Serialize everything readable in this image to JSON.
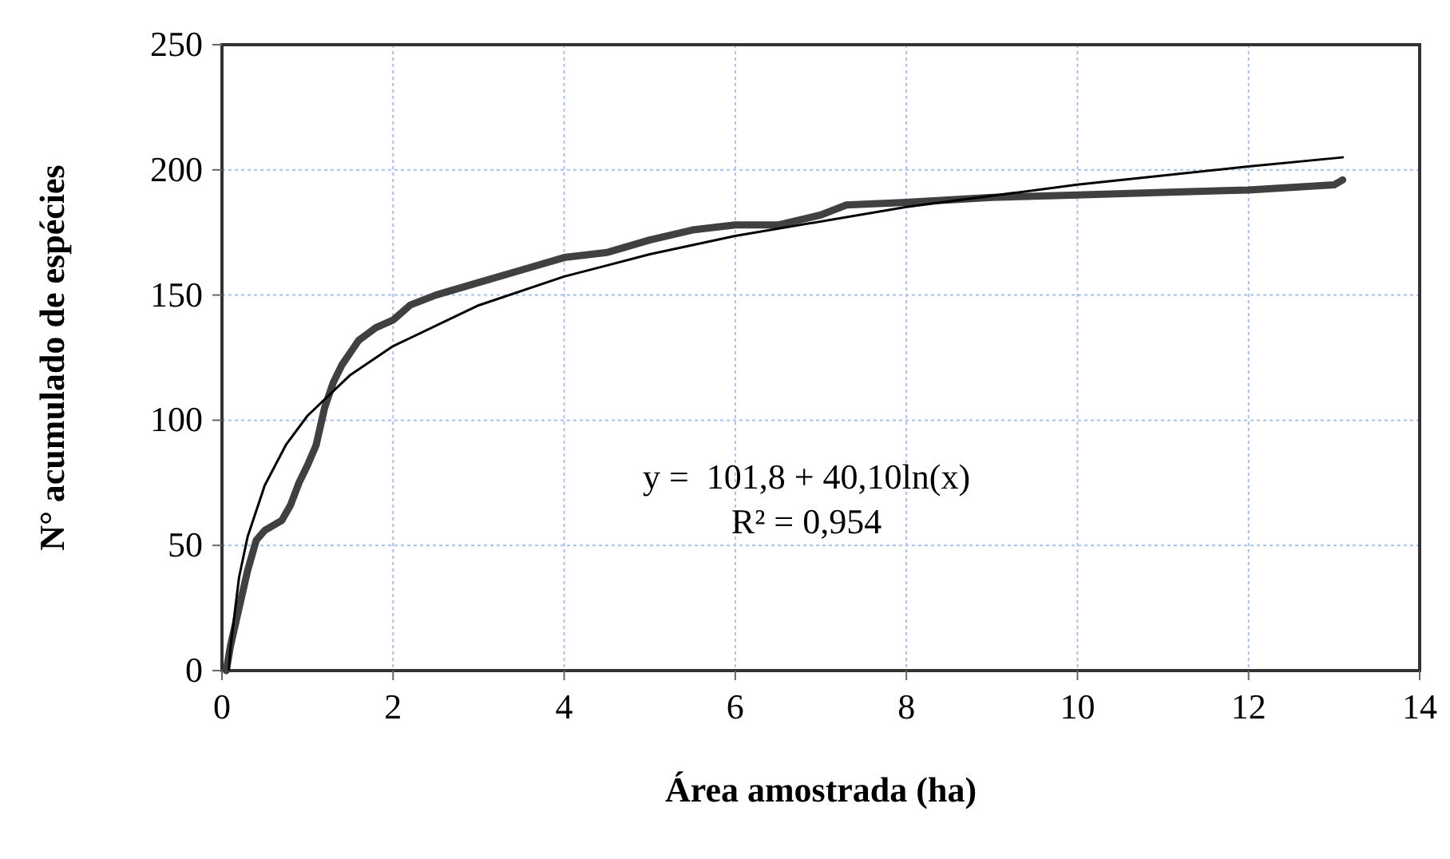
{
  "chart_data": {
    "type": "line",
    "xlabel": "Área amostrada (ha)",
    "ylabel": "N° acumulado de espécies",
    "xlim": [
      0,
      14
    ],
    "xticks": [
      0,
      2,
      4,
      6,
      8,
      10,
      12,
      14
    ],
    "ylim": [
      0,
      250
    ],
    "yticks": [
      0,
      50,
      100,
      150,
      200,
      250
    ],
    "grid": true,
    "marker": "none",
    "line_style": "solid",
    "annotations": [
      "y =  101,8 + 40,10ln(x)",
      "R² = 0,954"
    ],
    "series": [
      {
        "color": "#404040",
        "x": [
          0.05,
          0.1,
          0.2,
          0.3,
          0.4,
          0.5,
          0.7,
          0.8,
          0.9,
          1.0,
          1.1,
          1.2,
          1.3,
          1.4,
          1.5,
          1.6,
          1.8,
          2.0,
          2.2,
          2.5,
          3.0,
          3.5,
          4.0,
          4.5,
          5.0,
          5.5,
          6.0,
          6.5,
          7.0,
          7.3,
          8.0,
          9.0,
          10.0,
          11.0,
          12.0,
          13.0,
          13.1
        ],
        "values": [
          0,
          10,
          25,
          40,
          52,
          56,
          60,
          66,
          75,
          82,
          90,
          105,
          115,
          122,
          127,
          132,
          137,
          140,
          146,
          150,
          155,
          160,
          165,
          167,
          172,
          176,
          178,
          178,
          182,
          186,
          187,
          189,
          190,
          191,
          192,
          194,
          196
        ]
      },
      {
        "type": "line",
        "color": "#000000",
        "x": [
          0.08,
          0.1,
          0.2,
          0.3,
          0.5,
          0.75,
          1,
          1.5,
          2,
          3,
          4,
          5,
          6,
          8,
          10,
          12,
          13.1
        ],
        "values": [
          0.5,
          9.5,
          37.3,
          53.5,
          74.0,
          90.3,
          101.8,
          118.1,
          129.6,
          145.9,
          157.4,
          166.3,
          173.6,
          185.2,
          194.1,
          201.4,
          205.0
        ]
      }
    ]
  }
}
